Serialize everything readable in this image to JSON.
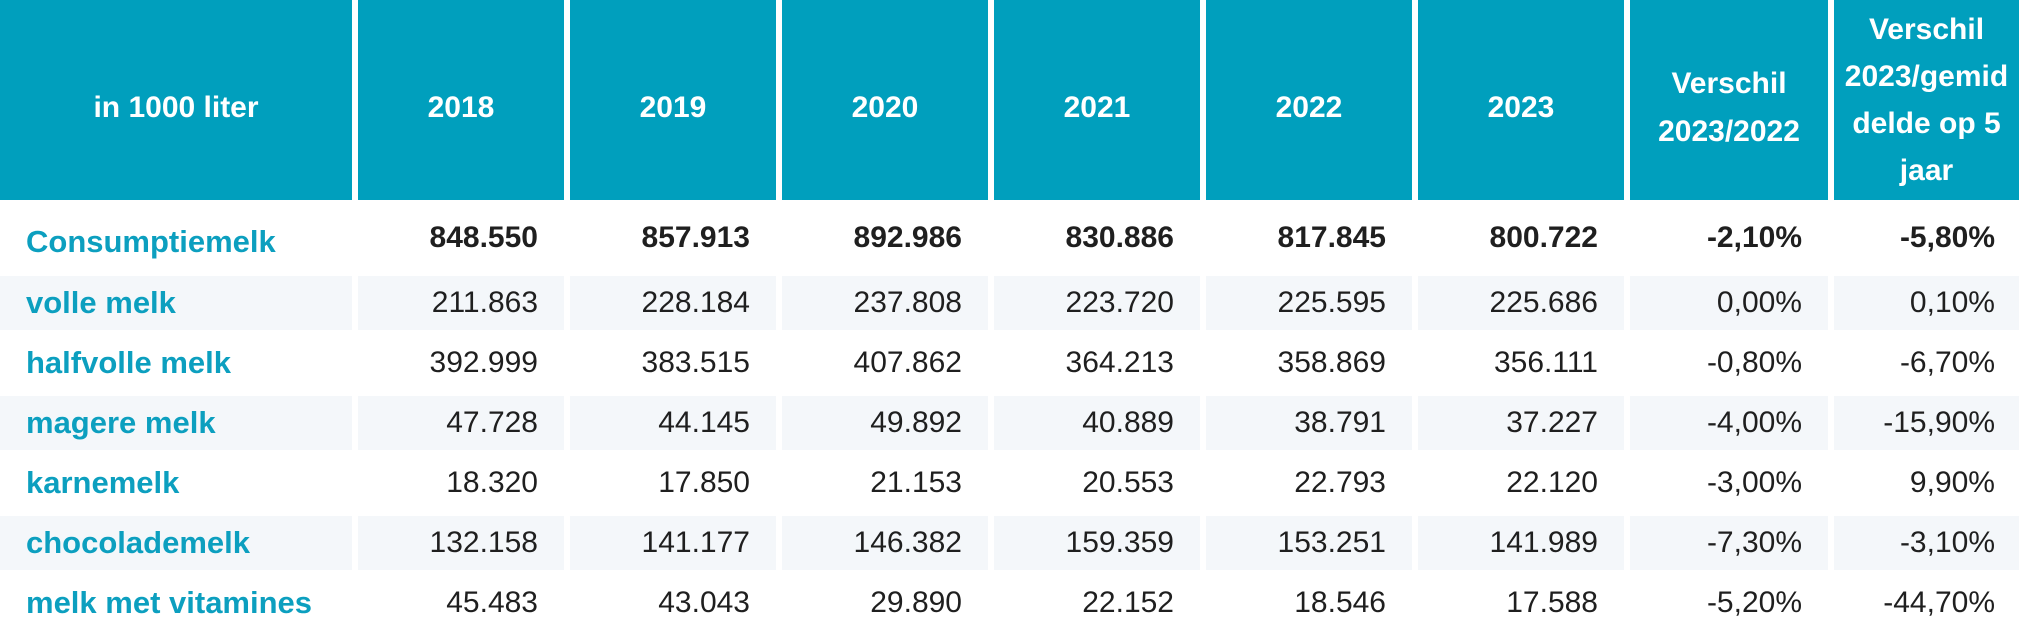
{
  "table": {
    "headers": [
      "in 1000 liter",
      "2018",
      "2019",
      "2020",
      "2021",
      "2022",
      "2023",
      "Verschil 2023/2022",
      "Verschil 2023/gemiddelde op 5 jaar"
    ],
    "header_lines": {
      "diff1": [
        "Verschil",
        "2023/2022"
      ],
      "diff2": [
        "Verschil",
        "2023/gemid",
        "delde op 5",
        "jaar"
      ]
    },
    "rows": [
      {
        "label": "Consumptiemelk",
        "values": [
          "848.550",
          "857.913",
          "892.986",
          "830.886",
          "817.845",
          "800.722",
          "-2,10%",
          "-5,80%"
        ]
      },
      {
        "label": "volle melk",
        "values": [
          "211.863",
          "228.184",
          "237.808",
          "223.720",
          "225.595",
          "225.686",
          "0,00%",
          "0,10%"
        ]
      },
      {
        "label": "halfvolle melk",
        "values": [
          "392.999",
          "383.515",
          "407.862",
          "364.213",
          "358.869",
          "356.111",
          "-0,80%",
          "-6,70%"
        ]
      },
      {
        "label": "magere melk",
        "values": [
          "47.728",
          "44.145",
          "49.892",
          "40.889",
          "38.791",
          "37.227",
          "-4,00%",
          "-15,90%"
        ]
      },
      {
        "label": "karnemelk",
        "values": [
          "18.320",
          "17.850",
          "21.153",
          "20.553",
          "22.793",
          "22.120",
          "-3,00%",
          "9,90%"
        ]
      },
      {
        "label": "chocolademelk",
        "values": [
          "132.158",
          "141.177",
          "146.382",
          "159.359",
          "153.251",
          "141.989",
          "-7,30%",
          "-3,10%"
        ]
      },
      {
        "label": "melk met vitamines",
        "values": [
          "45.483",
          "43.043",
          "29.890",
          "22.152",
          "18.546",
          "17.588",
          "-5,20%",
          "-44,70%"
        ]
      }
    ]
  },
  "colors": {
    "header_bg": "#009fbd",
    "header_text": "#ffffff",
    "label_text": "#0c9fbf",
    "alt_row_bg": "#f4f7fa"
  }
}
